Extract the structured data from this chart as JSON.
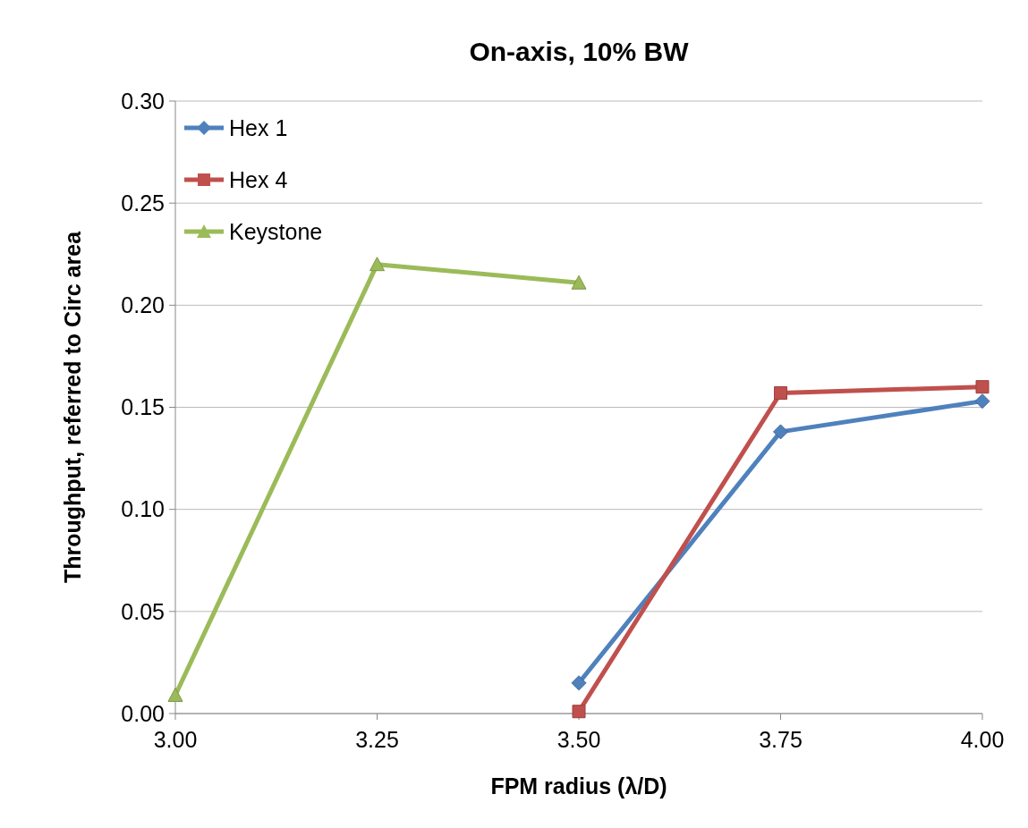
{
  "chart_data": {
    "type": "line",
    "title": "On-axis, 10% BW",
    "xlabel": "FPM radius (λ/D)",
    "ylabel": "Throughput, referred to Circ area",
    "x": [
      3.0,
      3.25,
      3.5,
      3.75,
      4.0
    ],
    "xlim": [
      3.0,
      4.0
    ],
    "xticks": [
      {
        "value": 3.0,
        "label": "3.00"
      },
      {
        "value": 3.25,
        "label": "3.25"
      },
      {
        "value": 3.5,
        "label": "3.50"
      },
      {
        "value": 3.75,
        "label": "3.75"
      },
      {
        "value": 4.0,
        "label": "4.00"
      }
    ],
    "ylim": [
      0,
      0.3
    ],
    "yticks": [
      {
        "value": 0,
        "label": "0.00"
      },
      {
        "value": 0.05,
        "label": "0.05"
      },
      {
        "value": 0.1,
        "label": "0.10"
      },
      {
        "value": 0.15,
        "label": "0.15"
      },
      {
        "value": 0.2,
        "label": "0.20"
      },
      {
        "value": 0.25,
        "label": "0.25"
      },
      {
        "value": 0.3,
        "label": "0.30"
      }
    ],
    "grid": "y",
    "legend": "top left",
    "series": [
      {
        "name": "Hex 1",
        "color": "#4f81bd",
        "marker": "diamond",
        "values": [
          null,
          null,
          0.015,
          0.138,
          0.153
        ]
      },
      {
        "name": "Hex 4",
        "color": "#c0504d",
        "marker": "square",
        "values": [
          null,
          null,
          0.001,
          0.157,
          0.16
        ]
      },
      {
        "name": "Keystone",
        "color": "#9bbb59",
        "marker": "triangle",
        "values": [
          0.009,
          0.22,
          0.211,
          null,
          null
        ]
      }
    ]
  }
}
